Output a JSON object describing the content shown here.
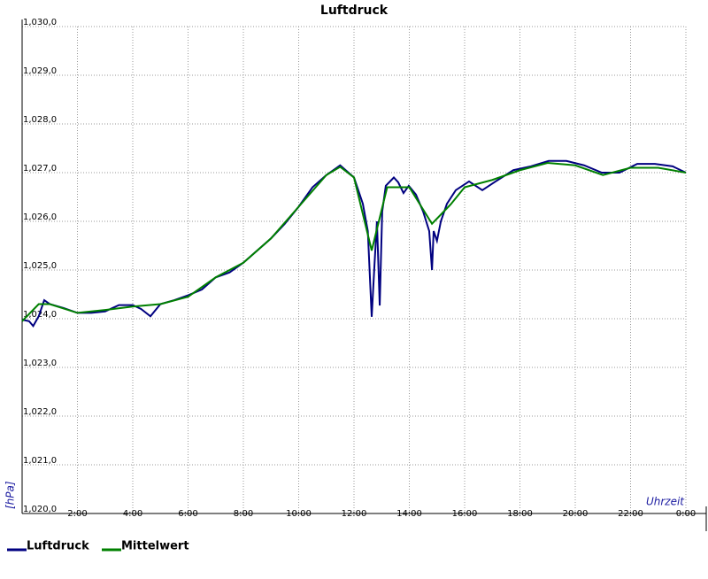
{
  "chart_data": {
    "type": "line",
    "title": "Luftdruck",
    "x_label": "Uhrzeit",
    "y_label": "[hPa]",
    "xlim": [
      0,
      24
    ],
    "ylim": [
      1020,
      1030
    ],
    "grid": true,
    "legend": "bottom-left",
    "xticks": [
      {
        "value": 2,
        "label": "2:00"
      },
      {
        "value": 4,
        "label": "4:00"
      },
      {
        "value": 6,
        "label": "6:00"
      },
      {
        "value": 8,
        "label": "8:00"
      },
      {
        "value": 10,
        "label": "10:00"
      },
      {
        "value": 12,
        "label": "12:00"
      },
      {
        "value": 14,
        "label": "14:00"
      },
      {
        "value": 16,
        "label": "16:00"
      },
      {
        "value": 18,
        "label": "18:00"
      },
      {
        "value": 20,
        "label": "20:00"
      },
      {
        "value": 22,
        "label": "22:00"
      },
      {
        "value": 24,
        "label": "0:00"
      }
    ],
    "yticks": [
      {
        "value": 1020,
        "label": "1,020,0"
      },
      {
        "value": 1021,
        "label": "1,021,0"
      },
      {
        "value": 1022,
        "label": "1,022,0"
      },
      {
        "value": 1023,
        "label": "1,023,0"
      },
      {
        "value": 1024,
        "label": "1,024,0"
      },
      {
        "value": 1025,
        "label": "1,025,0"
      },
      {
        "value": 1026,
        "label": "1,026,0"
      },
      {
        "value": 1027,
        "label": "1,027,0"
      },
      {
        "value": 1028,
        "label": "1,028,0"
      },
      {
        "value": 1029,
        "label": "1,029,0"
      },
      {
        "value": 1030,
        "label": "1,030,0"
      }
    ],
    "series": [
      {
        "name": "Luftdruck",
        "color": "#000080",
        "x": [
          0,
          0.25,
          0.4,
          0.6,
          0.8,
          1.0,
          1.5,
          2.0,
          2.5,
          3.0,
          3.5,
          4.0,
          4.3,
          4.64,
          5.0,
          5.5,
          6.0,
          6.5,
          7.0,
          7.5,
          8.0,
          8.5,
          9.0,
          9.5,
          10.0,
          10.5,
          11.0,
          11.5,
          12.0,
          12.32,
          12.5,
          12.64,
          12.74,
          12.83,
          12.93,
          13.02,
          13.15,
          13.44,
          13.6,
          13.79,
          13.98,
          14.24,
          14.5,
          14.72,
          14.82,
          14.88,
          15.0,
          15.14,
          15.36,
          15.68,
          16.16,
          16.64,
          17.12,
          17.76,
          18.4,
          19.04,
          19.68,
          20.32,
          20.96,
          21.6,
          22.24,
          22.88,
          23.52,
          24
        ],
        "values": [
          1023.98,
          1023.95,
          1023.85,
          1024.05,
          1024.38,
          1024.3,
          1024.22,
          1024.12,
          1024.12,
          1024.15,
          1024.28,
          1024.28,
          1024.2,
          1024.05,
          1024.3,
          1024.38,
          1024.48,
          1024.6,
          1024.85,
          1024.95,
          1025.15,
          1025.4,
          1025.65,
          1025.95,
          1026.3,
          1026.7,
          1026.95,
          1027.15,
          1026.9,
          1026.36,
          1025.8,
          1024.04,
          1025.1,
          1026.0,
          1024.27,
          1026.2,
          1026.73,
          1026.9,
          1026.8,
          1026.58,
          1026.73,
          1026.55,
          1026.2,
          1025.8,
          1025.0,
          1025.8,
          1025.6,
          1026.0,
          1026.36,
          1026.64,
          1026.82,
          1026.64,
          1026.82,
          1027.05,
          1027.13,
          1027.24,
          1027.24,
          1027.15,
          1027.0,
          1027.0,
          1027.18,
          1027.18,
          1027.13,
          1027.0
        ]
      },
      {
        "name": "Mittelwert",
        "color": "#008000",
        "x": [
          0,
          0.6,
          1.0,
          2,
          3,
          4,
          5,
          6,
          7,
          8,
          9,
          10,
          11,
          11.5,
          12.0,
          12.64,
          13.2,
          14.0,
          14.82,
          15.5,
          16.0,
          17,
          18,
          19,
          20,
          21,
          22,
          23,
          24
        ],
        "values": [
          1023.95,
          1024.3,
          1024.3,
          1024.12,
          1024.18,
          1024.25,
          1024.3,
          1024.45,
          1024.85,
          1025.15,
          1025.65,
          1026.3,
          1026.95,
          1027.12,
          1026.9,
          1025.4,
          1026.7,
          1026.7,
          1025.95,
          1026.35,
          1026.7,
          1026.85,
          1027.05,
          1027.2,
          1027.15,
          1026.95,
          1027.1,
          1027.1,
          1027.0
        ]
      }
    ]
  }
}
